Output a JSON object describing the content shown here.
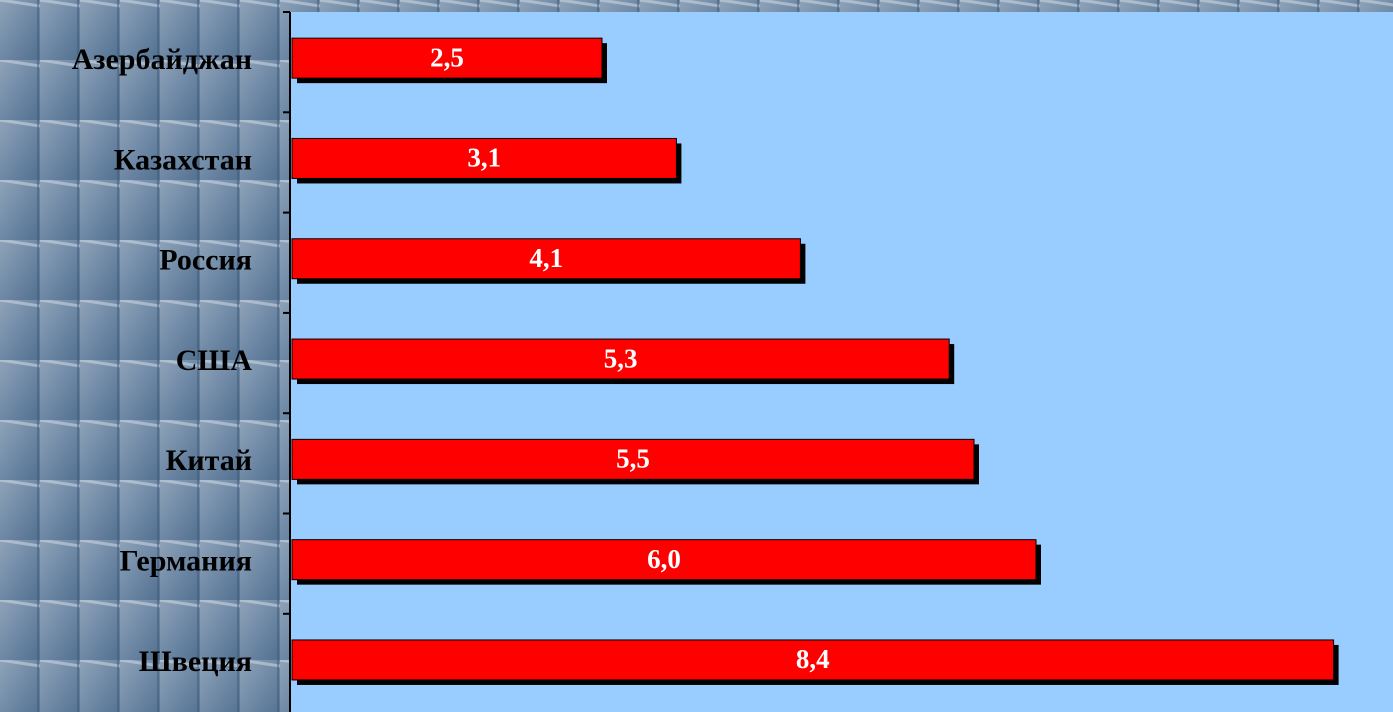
{
  "chart_data": {
    "type": "bar",
    "orientation": "horizontal",
    "categories": [
      "Азербайджан",
      "Казахстан",
      "Россия",
      "США",
      "Китай",
      "Германия",
      "Швеция"
    ],
    "values": [
      2.5,
      3.1,
      4.1,
      5.3,
      5.5,
      6.0,
      8.4
    ],
    "value_labels": [
      "2,5",
      "3,1",
      "4,1",
      "5,3",
      "5,5",
      "6,0",
      "8,4"
    ],
    "color": "#ff0000"
  }
}
